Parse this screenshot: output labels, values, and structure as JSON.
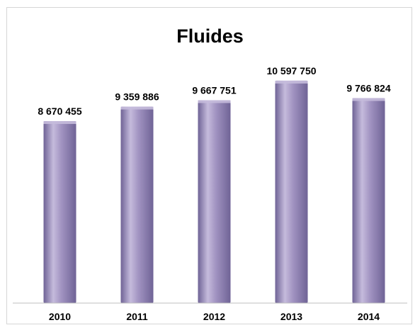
{
  "chart_data": {
    "type": "bar",
    "title": "Fluides",
    "xlabel": "",
    "ylabel": "",
    "categories": [
      "2010",
      "2011",
      "2012",
      "2013",
      "2014"
    ],
    "values": [
      8670455,
      9359886,
      9667751,
      10597750,
      9766824
    ],
    "data_labels": [
      "8 670 455",
      "9 359 886",
      "9 667 751",
      "10 597 750",
      "9 766 824"
    ],
    "ylim": [
      0,
      11000000
    ],
    "grid": false,
    "legend": "none",
    "colors": {
      "bar_fill": "#a193c1",
      "bar_light": "#c5bbdc",
      "bar_dark": "#6f6396",
      "axis": "#bfbfbf"
    }
  }
}
